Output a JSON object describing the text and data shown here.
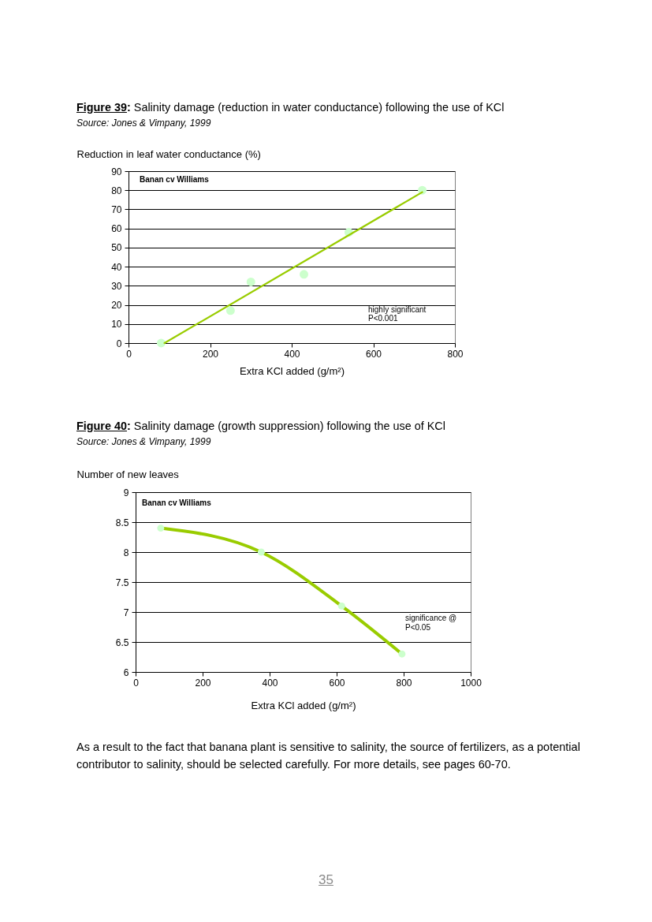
{
  "chart_data": [
    {
      "type": "scatter",
      "title": "Figure 39: Salinity damage (reduction in water conductance) following the use of KCl",
      "subtitle": "Source: Jones & Vimpany, 1999",
      "ylabel": "Reduction in leaf water conductance (%)",
      "xlabel": "Extra KCl added (g/m²)",
      "annotations": [
        "Banan cv Williams",
        "highly significant\nP<0.001"
      ],
      "xlim": [
        0,
        800
      ],
      "xticks": [
        0,
        200,
        400,
        600,
        800
      ],
      "ylim": [
        0,
        90
      ],
      "yticks": [
        0,
        10,
        20,
        30,
        40,
        50,
        60,
        70,
        80,
        90
      ],
      "grid": "y",
      "series": [
        {
          "color": "#ccffcc",
          "x": [
            80,
            250,
            300,
            430,
            540,
            720
          ],
          "values": [
            0,
            17,
            32,
            36,
            58,
            80
          ]
        },
        {
          "type": "line",
          "color": "#99cc00",
          "x": [
            88,
            720
          ],
          "values": [
            0,
            79
          ]
        }
      ]
    },
    {
      "type": "line",
      "title": "Figure 40: Salinity damage (growth suppression) following the use of KCl",
      "subtitle": "Source: Jones & Vimpany, 1999",
      "ylabel": "Number of new leaves",
      "xlabel": "Extra KCl added (g/m²)",
      "annotations": [
        "Banan cv Williams",
        "significance @\nP<0.05",
        "As a result to the fact that banana plant is sensitive to salinity, the source of fertilizers, as a potential contributor to salinity, should be selected carefully. For more details, see pages 60-70.",
        "35"
      ],
      "xlim": [
        0,
        1000
      ],
      "xticks": [
        0,
        200,
        400,
        600,
        800,
        1000
      ],
      "ylim": [
        6,
        9
      ],
      "yticks": [
        6,
        6.5,
        7,
        7.5,
        8,
        8.5,
        9
      ],
      "grid": "y",
      "series": [
        {
          "color": "#99cc00",
          "x": [
            75,
            375,
            615,
            795
          ],
          "values": [
            8.4,
            8,
            7.1,
            6.3
          ]
        },
        {
          "type": "scatter",
          "color": "#ccffcc",
          "x": [
            75,
            375,
            615,
            795
          ],
          "values": [
            8.4,
            8,
            7.1,
            6.3
          ]
        }
      ]
    }
  ]
}
